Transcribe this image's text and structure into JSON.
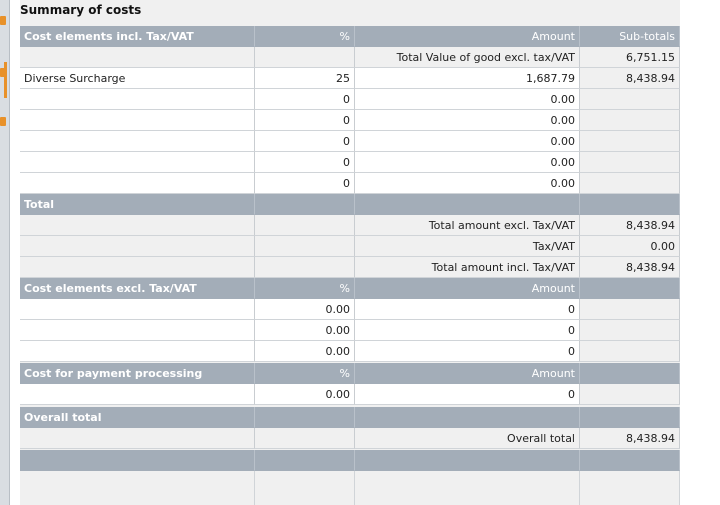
{
  "title": "Summary of costs",
  "sections": [
    {
      "header": [
        "Cost elements incl. Tax/VAT",
        "%",
        "Amount",
        "Sub-totals"
      ],
      "rows": [
        [
          null,
          null,
          "Total Value of good excl. tax/VAT",
          "6,751.15"
        ],
        [
          "Diverse Surcharge",
          "25",
          "1,687.79",
          "8,438.94"
        ],
        [
          null,
          "0",
          "0.00",
          null
        ],
        [
          null,
          "0",
          "0.00",
          null
        ],
        [
          null,
          "0",
          "0.00",
          null
        ],
        [
          null,
          "0",
          "0.00",
          null
        ],
        [
          null,
          "0",
          "0.00",
          null
        ]
      ]
    },
    {
      "header": [
        "Total",
        null,
        null,
        null
      ],
      "rows": [
        [
          null,
          null,
          "Total amount excl. Tax/VAT",
          "8,438.94"
        ],
        [
          null,
          null,
          "Tax/VAT",
          "0.00"
        ],
        [
          null,
          null,
          "Total amount incl. Tax/VAT",
          "8,438.94"
        ]
      ]
    },
    {
      "header": [
        "Cost elements excl. Tax/VAT",
        "%",
        "Amount",
        null
      ],
      "rows": [
        [
          null,
          "0.00",
          "0",
          null
        ],
        [
          null,
          "0.00",
          "0",
          null
        ],
        [
          null,
          "0.00",
          "0",
          null
        ]
      ]
    },
    {
      "header": [
        "Cost for payment processing",
        "%",
        "Amount",
        null
      ],
      "rows": [
        [
          null,
          "0.00",
          "0",
          null
        ]
      ]
    },
    {
      "header": [
        "Overall total",
        null,
        null,
        null
      ],
      "rows": [
        [
          null,
          null,
          "Overall total",
          "8,438.94"
        ]
      ]
    }
  ]
}
